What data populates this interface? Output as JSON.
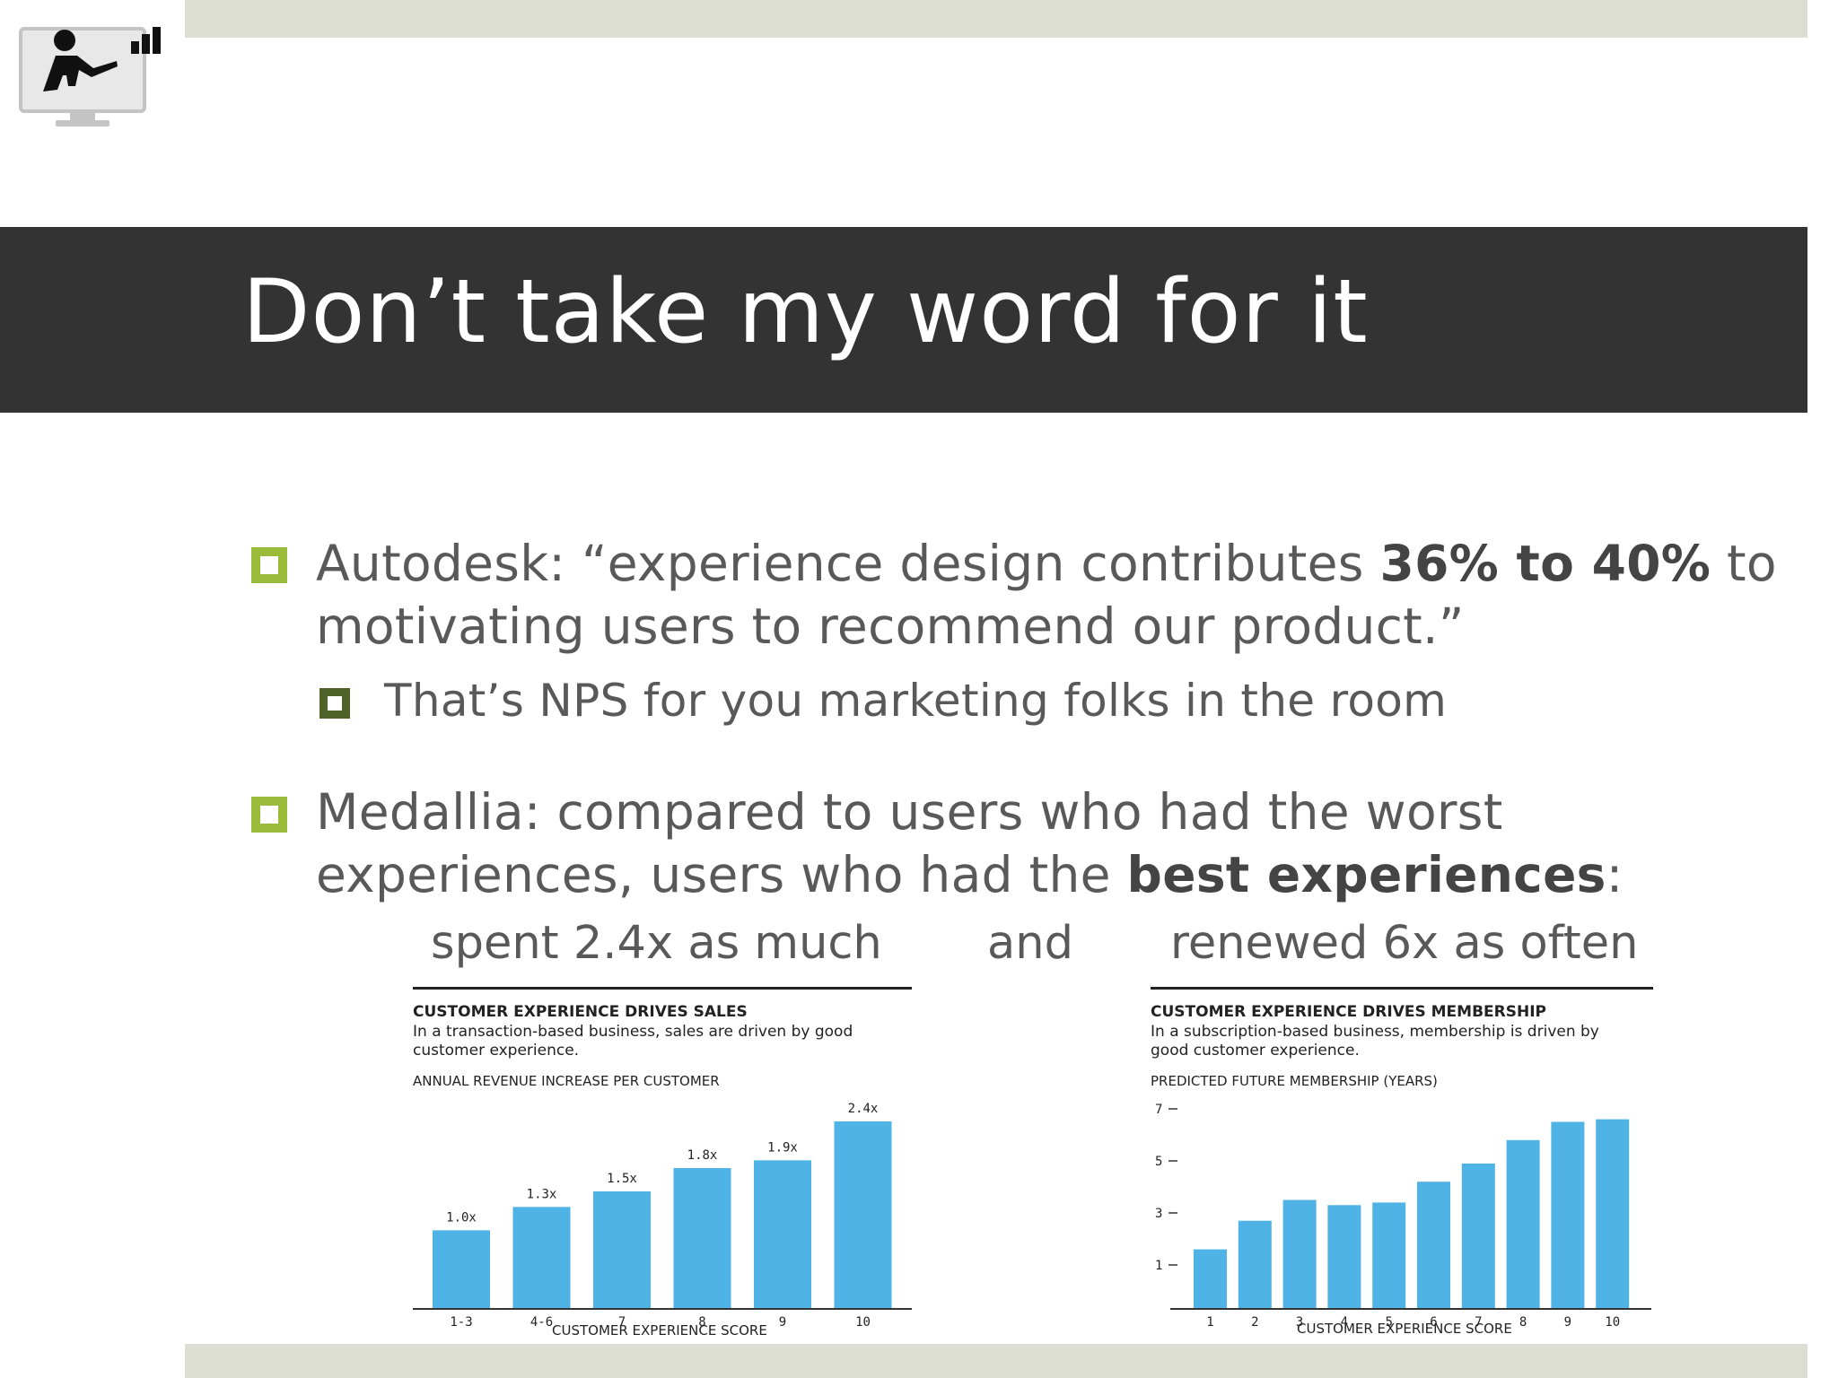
{
  "slide": {
    "title": "Don’t take my word for it",
    "bullets": [
      {
        "prefix": "Autodesk: “experience design contributes ",
        "bold": "36% to 40%",
        "suffix": " to motivating users to recommend our product.”",
        "sub": "That’s NPS for you marketing folks in the room"
      },
      {
        "prefix": "Medallia: compared to users who had the worst experiences, users who had the ",
        "bold": "best experiences",
        "suffix": ":"
      }
    ],
    "captions": {
      "left": "spent 2.4x as much",
      "middle": "and",
      "right": "renewed 6x as often"
    }
  },
  "chart_data": [
    {
      "type": "bar",
      "title": "CUSTOMER EXPERIENCE DRIVES SALES",
      "subtitle": "In a transaction-based business, sales are driven by good customer experience.",
      "ylabel": "ANNUAL REVENUE INCREASE PER CUSTOMER",
      "xlabel": "CUSTOMER EXPERIENCE SCORE",
      "categories": [
        "1-3",
        "4-6",
        "7",
        "8",
        "9",
        "10"
      ],
      "values": [
        1.0,
        1.3,
        1.5,
        1.8,
        1.9,
        2.4
      ],
      "data_labels": [
        "1.0x",
        "1.3x",
        "1.5x",
        "1.8x",
        "1.9x",
        "2.4x"
      ],
      "ylim": [
        0,
        2.4
      ],
      "color": "#4fb3e6",
      "grid": false
    },
    {
      "type": "bar",
      "title": "CUSTOMER EXPERIENCE DRIVES MEMBERSHIP",
      "subtitle": "In a subscription-based business, membership is driven by good customer experience.",
      "ylabel": "PREDICTED FUTURE MEMBERSHIP (YEARS)",
      "xlabel": "CUSTOMER EXPERIENCE SCORE",
      "categories": [
        "1",
        "2",
        "3",
        "4",
        "5",
        "6",
        "7",
        "8",
        "9",
        "10"
      ],
      "values": [
        1.6,
        2.7,
        3.5,
        3.3,
        3.4,
        4.2,
        4.9,
        5.8,
        6.5,
        6.6
      ],
      "yticks": [
        1,
        3,
        5,
        7
      ],
      "ylim": [
        0,
        7
      ],
      "color": "#4fb3e6",
      "grid": false
    }
  ],
  "colors": {
    "accent_green": "#9bbb3a",
    "dark_green": "#4f6228",
    "title_band": "#333333",
    "bar_blue": "#4fb3e6"
  }
}
